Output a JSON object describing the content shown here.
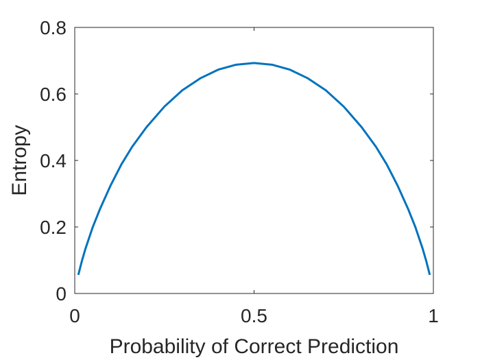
{
  "chart_data": {
    "type": "line",
    "title": "",
    "xlabel": "Probability of Correct Prediction",
    "ylabel": "Entropy",
    "xlim": [
      0,
      1
    ],
    "ylim": [
      0,
      0.8
    ],
    "xticks": [
      {
        "value": 0,
        "label": "0"
      },
      {
        "value": 0.5,
        "label": "0.5"
      },
      {
        "value": 1,
        "label": "1"
      }
    ],
    "yticks": [
      {
        "value": 0,
        "label": "0"
      },
      {
        "value": 0.2,
        "label": "0.2"
      },
      {
        "value": 0.4,
        "label": "0.4"
      },
      {
        "value": 0.6,
        "label": "0.6"
      },
      {
        "value": 0.8,
        "label": "0.8"
      }
    ],
    "grid": false,
    "series": [
      {
        "color": "#0072BD",
        "x": [
          0.01,
          0.02,
          0.03,
          0.05,
          0.07,
          0.1,
          0.13,
          0.16,
          0.2,
          0.25,
          0.3,
          0.35,
          0.4,
          0.45,
          0.5,
          0.55,
          0.6,
          0.65,
          0.7,
          0.75,
          0.8,
          0.84,
          0.87,
          0.9,
          0.93,
          0.95,
          0.97,
          0.98,
          0.99
        ],
        "y": [
          0.056,
          0.098,
          0.135,
          0.199,
          0.253,
          0.325,
          0.388,
          0.441,
          0.5,
          0.562,
          0.611,
          0.647,
          0.673,
          0.688,
          0.693,
          0.688,
          0.673,
          0.647,
          0.611,
          0.562,
          0.5,
          0.441,
          0.388,
          0.325,
          0.253,
          0.199,
          0.135,
          0.098,
          0.056
        ]
      }
    ]
  }
}
